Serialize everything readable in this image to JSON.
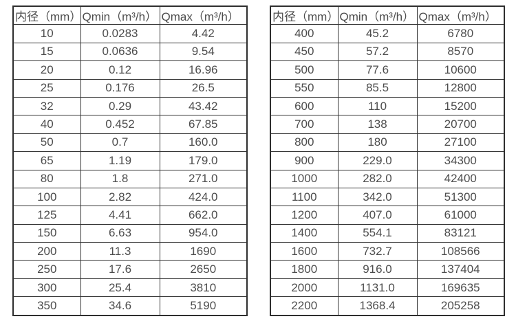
{
  "colors": {
    "background": "#ffffff",
    "text": "#4d4d4d",
    "border": "#333333"
  },
  "chart_data": [
    {
      "type": "table",
      "columns": [
        "内径（mm）",
        "Qmin（m³/h）",
        "Qmax（m³/h）"
      ],
      "rows": [
        [
          "10",
          "0.0283",
          "4.42"
        ],
        [
          "15",
          "0.0636",
          "9.54"
        ],
        [
          "20",
          "0.12",
          "16.96"
        ],
        [
          "25",
          "0.176",
          "26.5"
        ],
        [
          "32",
          "0.29",
          "43.42"
        ],
        [
          "40",
          "0.452",
          "67.85"
        ],
        [
          "50",
          "0.7",
          "160.0"
        ],
        [
          "65",
          "1.19",
          "179.0"
        ],
        [
          "80",
          "1.8",
          "271.0"
        ],
        [
          "100",
          "2.82",
          "424.0"
        ],
        [
          "125",
          "4.41",
          "662.0"
        ],
        [
          "150",
          "6.63",
          "954.0"
        ],
        [
          "200",
          "11.3",
          "1690"
        ],
        [
          "250",
          "17.6",
          "2650"
        ],
        [
          "300",
          "25.4",
          "3810"
        ],
        [
          "350",
          "34.6",
          "5190"
        ]
      ]
    },
    {
      "type": "table",
      "columns": [
        "内径（mm）",
        "Qmin（m³/h）",
        "Qmax（m³/h）"
      ],
      "rows": [
        [
          "400",
          "45.2",
          "6780"
        ],
        [
          "450",
          "57.2",
          "8570"
        ],
        [
          "500",
          "77.6",
          "10600"
        ],
        [
          "550",
          "85.5",
          "12800"
        ],
        [
          "600",
          "110",
          "15200"
        ],
        [
          "700",
          "138",
          "20700"
        ],
        [
          "800",
          "180",
          "27100"
        ],
        [
          "900",
          "229.0",
          "34300"
        ],
        [
          "1000",
          "282.0",
          "42400"
        ],
        [
          "1100",
          "342.0",
          "51300"
        ],
        [
          "1200",
          "407.0",
          "61000"
        ],
        [
          "1400",
          "554.1",
          "83121"
        ],
        [
          "1600",
          "732.7",
          "108566"
        ],
        [
          "1800",
          "916.0",
          "137404"
        ],
        [
          "2000",
          "1131.0",
          "169635"
        ],
        [
          "2200",
          "1368.4",
          "205258"
        ]
      ]
    }
  ]
}
